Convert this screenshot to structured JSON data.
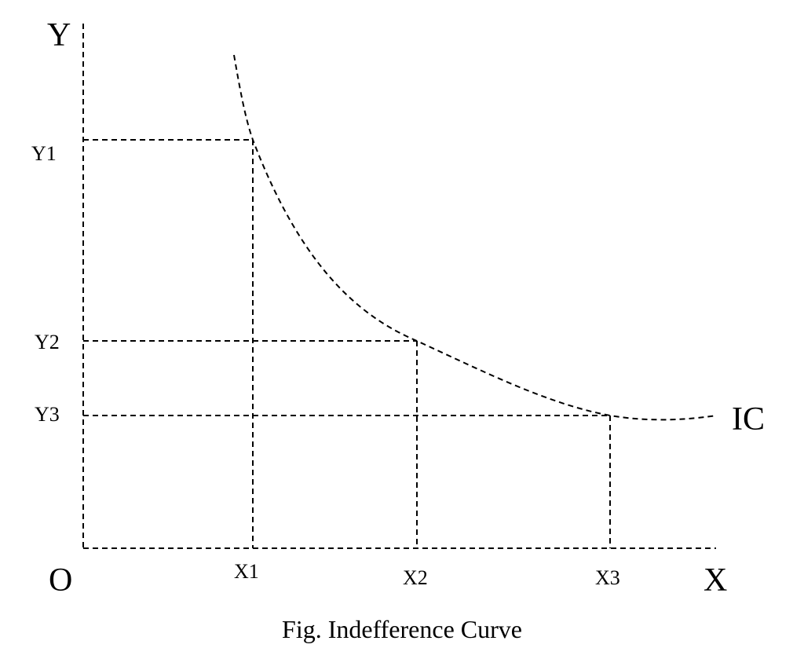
{
  "labels": {
    "y_axis": "Y",
    "x_axis": "X",
    "origin": "O",
    "curve": "IC",
    "caption": "Fig. Indefference Curve"
  },
  "y_ticks": [
    "Y1",
    "Y2",
    "Y3"
  ],
  "x_ticks": [
    "X1",
    "X2",
    "X3"
  ],
  "points": [
    {
      "x": "X1",
      "y": "Y1"
    },
    {
      "x": "X2",
      "y": "Y2"
    },
    {
      "x": "X3",
      "y": "Y3"
    }
  ],
  "colors": {
    "line": "#000000",
    "background": "#ffffff"
  }
}
